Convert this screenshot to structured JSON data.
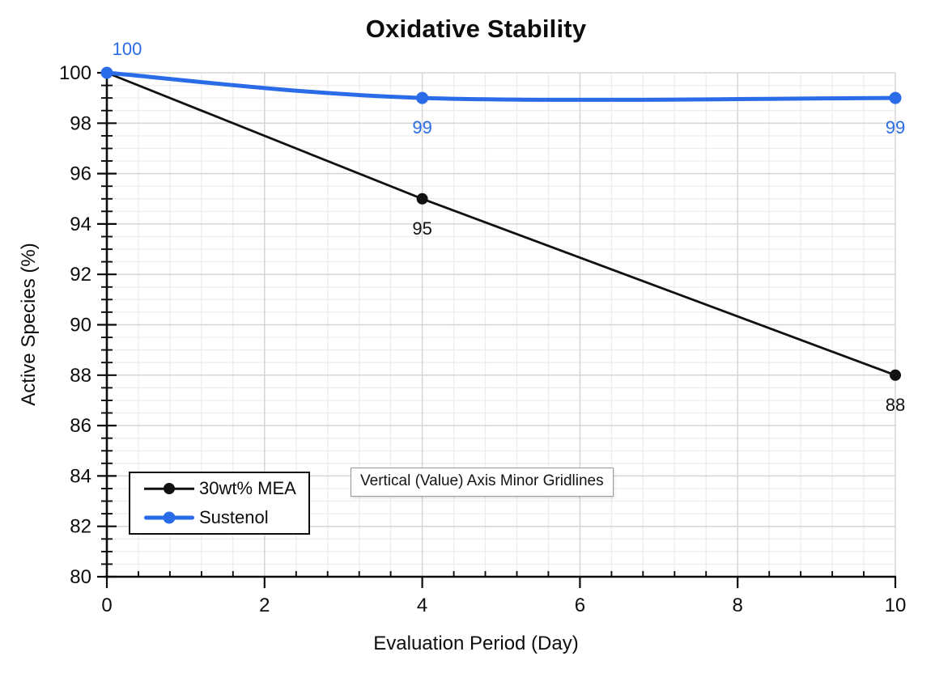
{
  "chart_data": {
    "type": "line",
    "title": "Oxidative Stability",
    "xlabel": "Evaluation Period (Day)",
    "ylabel": "Active Species (%)",
    "xlim": [
      0,
      10
    ],
    "ylim": [
      80,
      100
    ],
    "x_major_ticks": [
      0,
      2,
      4,
      6,
      8,
      10
    ],
    "x_tick_labels": [
      "0",
      "2",
      "4",
      "6",
      "8",
      "10"
    ],
    "x_minor_step": 0.4,
    "y_major_step": 2,
    "y_tick_labels": [
      "80",
      "82",
      "84",
      "86",
      "88",
      "90",
      "92",
      "94",
      "96",
      "98",
      "100"
    ],
    "y_minor_step": 0.5,
    "grid": "major and minor gridlines on both axes",
    "legend_position": "inside bottom-left",
    "colors": {
      "axis": "#0d0d0d",
      "major_grid": "#d6d6d6",
      "minor_grid": "#ededed"
    },
    "series": [
      {
        "name": "30wt% MEA",
        "color": "#111111",
        "line_width": 2.8,
        "smooth": false,
        "marker": "circle",
        "x": [
          0,
          4,
          10
        ],
        "y": [
          100,
          95,
          88
        ],
        "point_labels": [
          {
            "text": "95",
            "x": 4,
            "y": 95,
            "placement": "below"
          },
          {
            "text": "88",
            "x": 10,
            "y": 88,
            "placement": "below"
          }
        ]
      },
      {
        "name": "Sustenol",
        "color": "#2a6ce8",
        "line_width": 5,
        "smooth": true,
        "marker": "circle",
        "x": [
          0,
          4,
          10
        ],
        "y": [
          100,
          99,
          99
        ],
        "point_labels": [
          {
            "text": "100",
            "x": 0,
            "y": 100,
            "placement": "above-right"
          },
          {
            "text": "99",
            "x": 4,
            "y": 99,
            "placement": "below"
          },
          {
            "text": "99",
            "x": 10,
            "y": 99,
            "placement": "below"
          }
        ]
      }
    ],
    "tooltip_label": "Vertical (Value) Axis Minor Gridlines"
  }
}
